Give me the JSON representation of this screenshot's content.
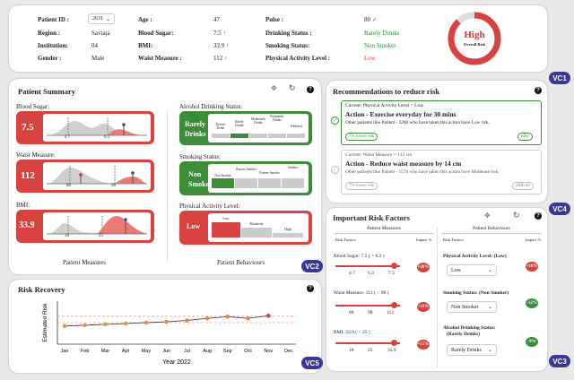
{
  "info": {
    "patient_id_label": "Patient ID :",
    "patient_id": "2631",
    "region_label": "Region :",
    "region": "Saviaja",
    "institution_label": "Institution:",
    "institution": "04",
    "gender_label": "Gender :",
    "gender": "Male",
    "age_label": "Age :",
    "age": "47",
    "blood_sugar_label": "Blood Sugar:",
    "blood_sugar": "7.5",
    "bmi_label": "BMI:",
    "bmi": "33.9",
    "waist_label": "Waist Measure :",
    "waist": "112",
    "pulse_label": "Pulse :",
    "pulse": "80",
    "drinking_label": "Drinking Status :",
    "drinking": "Rarely Drinks",
    "smoking_label": "Smoking Status:",
    "smoking": "Non Smoker",
    "activity_label": "Physical Activity Level :",
    "activity": "Low",
    "risk_level": "High",
    "risk_caption": "Overall Risk",
    "risk_fraction": 0.88
  },
  "summary": {
    "title": "Patient Summary",
    "blood_sugar_label": "Blood Sugar:",
    "blood_sugar_value": "7.5",
    "bs_ticks": [
      "4.7",
      "6.3"
    ],
    "waist_label": "Waist Measure:",
    "waist_value": "112",
    "w_ticks": [
      "80",
      "98"
    ],
    "bmi_label": "BMI:",
    "bmi_value": "33.9",
    "bmi_ticks": [
      "18",
      "25"
    ],
    "measures_caption": "Patient Measures",
    "alcohol_label": "Alcohol Drinking Status:",
    "alcohol_value_1": "Rarely",
    "alcohol_value_2": "Drinks",
    "alcohol_cats": [
      "Doesn't Drink",
      "Rarely Drinks",
      "Moderately Drinks",
      "Frequently Drinks",
      "Addicted"
    ],
    "smoking_label": "Smoking Status:",
    "smoking_value_1": "Non",
    "smoking_value_2": "Smoker",
    "smoking_cats": [
      "Non Smoker",
      "Passive Smoker",
      "Former Smoker",
      "Smoker"
    ],
    "activity_label": "Physical Activity Level:",
    "activity_value": "Low",
    "activity_cats": [
      "Low",
      "Moderate",
      "High"
    ],
    "behaviours_caption": "Patient Behaviours"
  },
  "recommendations": {
    "title": "Recommendations to reduce risk",
    "items": [
      {
        "current": "Current: Physical Activity Level = Low",
        "action": "Action - Exercise everyday for 30 mins",
        "others": "Other patients like Patient - 2200 who have taken this action have Low risk.",
        "tag": "7% lower risk",
        "difficulty": "easy"
      },
      {
        "current": "Current: Waist Measure = 112 cm",
        "action": "Action - Reduce waist measure by 14 cm",
        "others": "Other patients like Patient - 1570 who have taken this action have Moderate risk.",
        "tag": "7% lower risk",
        "difficulty": "difficult"
      }
    ]
  },
  "factors": {
    "title": "Important Risk Factors",
    "measures_header": "Patient Measures",
    "behaviours_header": "Patient Behaviours",
    "risk_factors_col": "Risk Factors",
    "impact_col": "Impact %",
    "blood_sugar": {
      "label": "Blood Sugar: 7.5 ( > 6.3 )",
      "ticks": [
        "4.7",
        "6.3",
        "7.5"
      ],
      "impact": "+20%"
    },
    "waist": {
      "label": "Waist Measure: 112 ( > 98 )",
      "ticks": [
        "80",
        "98",
        "112"
      ],
      "impact": "+19%"
    },
    "bmi": {
      "label": "BMI: 33.9 ( > 25 )",
      "ticks": [
        "18",
        "25",
        "33.9"
      ],
      "impact": "+15%"
    },
    "activity": {
      "label": "Physical Activity Level: (Low)",
      "select": "Low",
      "impact": "+10%"
    },
    "smoking": {
      "label": "Smoking Status: (Non Smoker)",
      "select": "Non Smoker",
      "impact": "-12%"
    },
    "alcohol": {
      "label": "Alcohol Drinking Status:",
      "label2": "(Rarely Drinks)",
      "select": "Rarely Drinks",
      "impact": "-9%"
    }
  },
  "recovery": {
    "title": "Risk Recovery"
  },
  "chart_data": {
    "type": "line",
    "title": "",
    "xlabel": "Year 2022",
    "ylabel": "Estimated Risk",
    "categories": [
      "Jan",
      "Feb",
      "Mar",
      "Apr",
      "May",
      "Jun",
      "Jul",
      "Aug",
      "Sep",
      "Oct",
      "Nov",
      "Dec"
    ],
    "series": [
      {
        "values": [
          0.42,
          0.44,
          0.46,
          0.48,
          0.5,
          0.52,
          0.55,
          0.6,
          0.64,
          0.6,
          0.66,
          null
        ]
      }
    ],
    "ylim": [
      0,
      1
    ],
    "reference_lines": [
      0.5,
      0.65
    ]
  },
  "badges": [
    "VC1",
    "VC2",
    "VC3",
    "VC4",
    "VC5"
  ]
}
